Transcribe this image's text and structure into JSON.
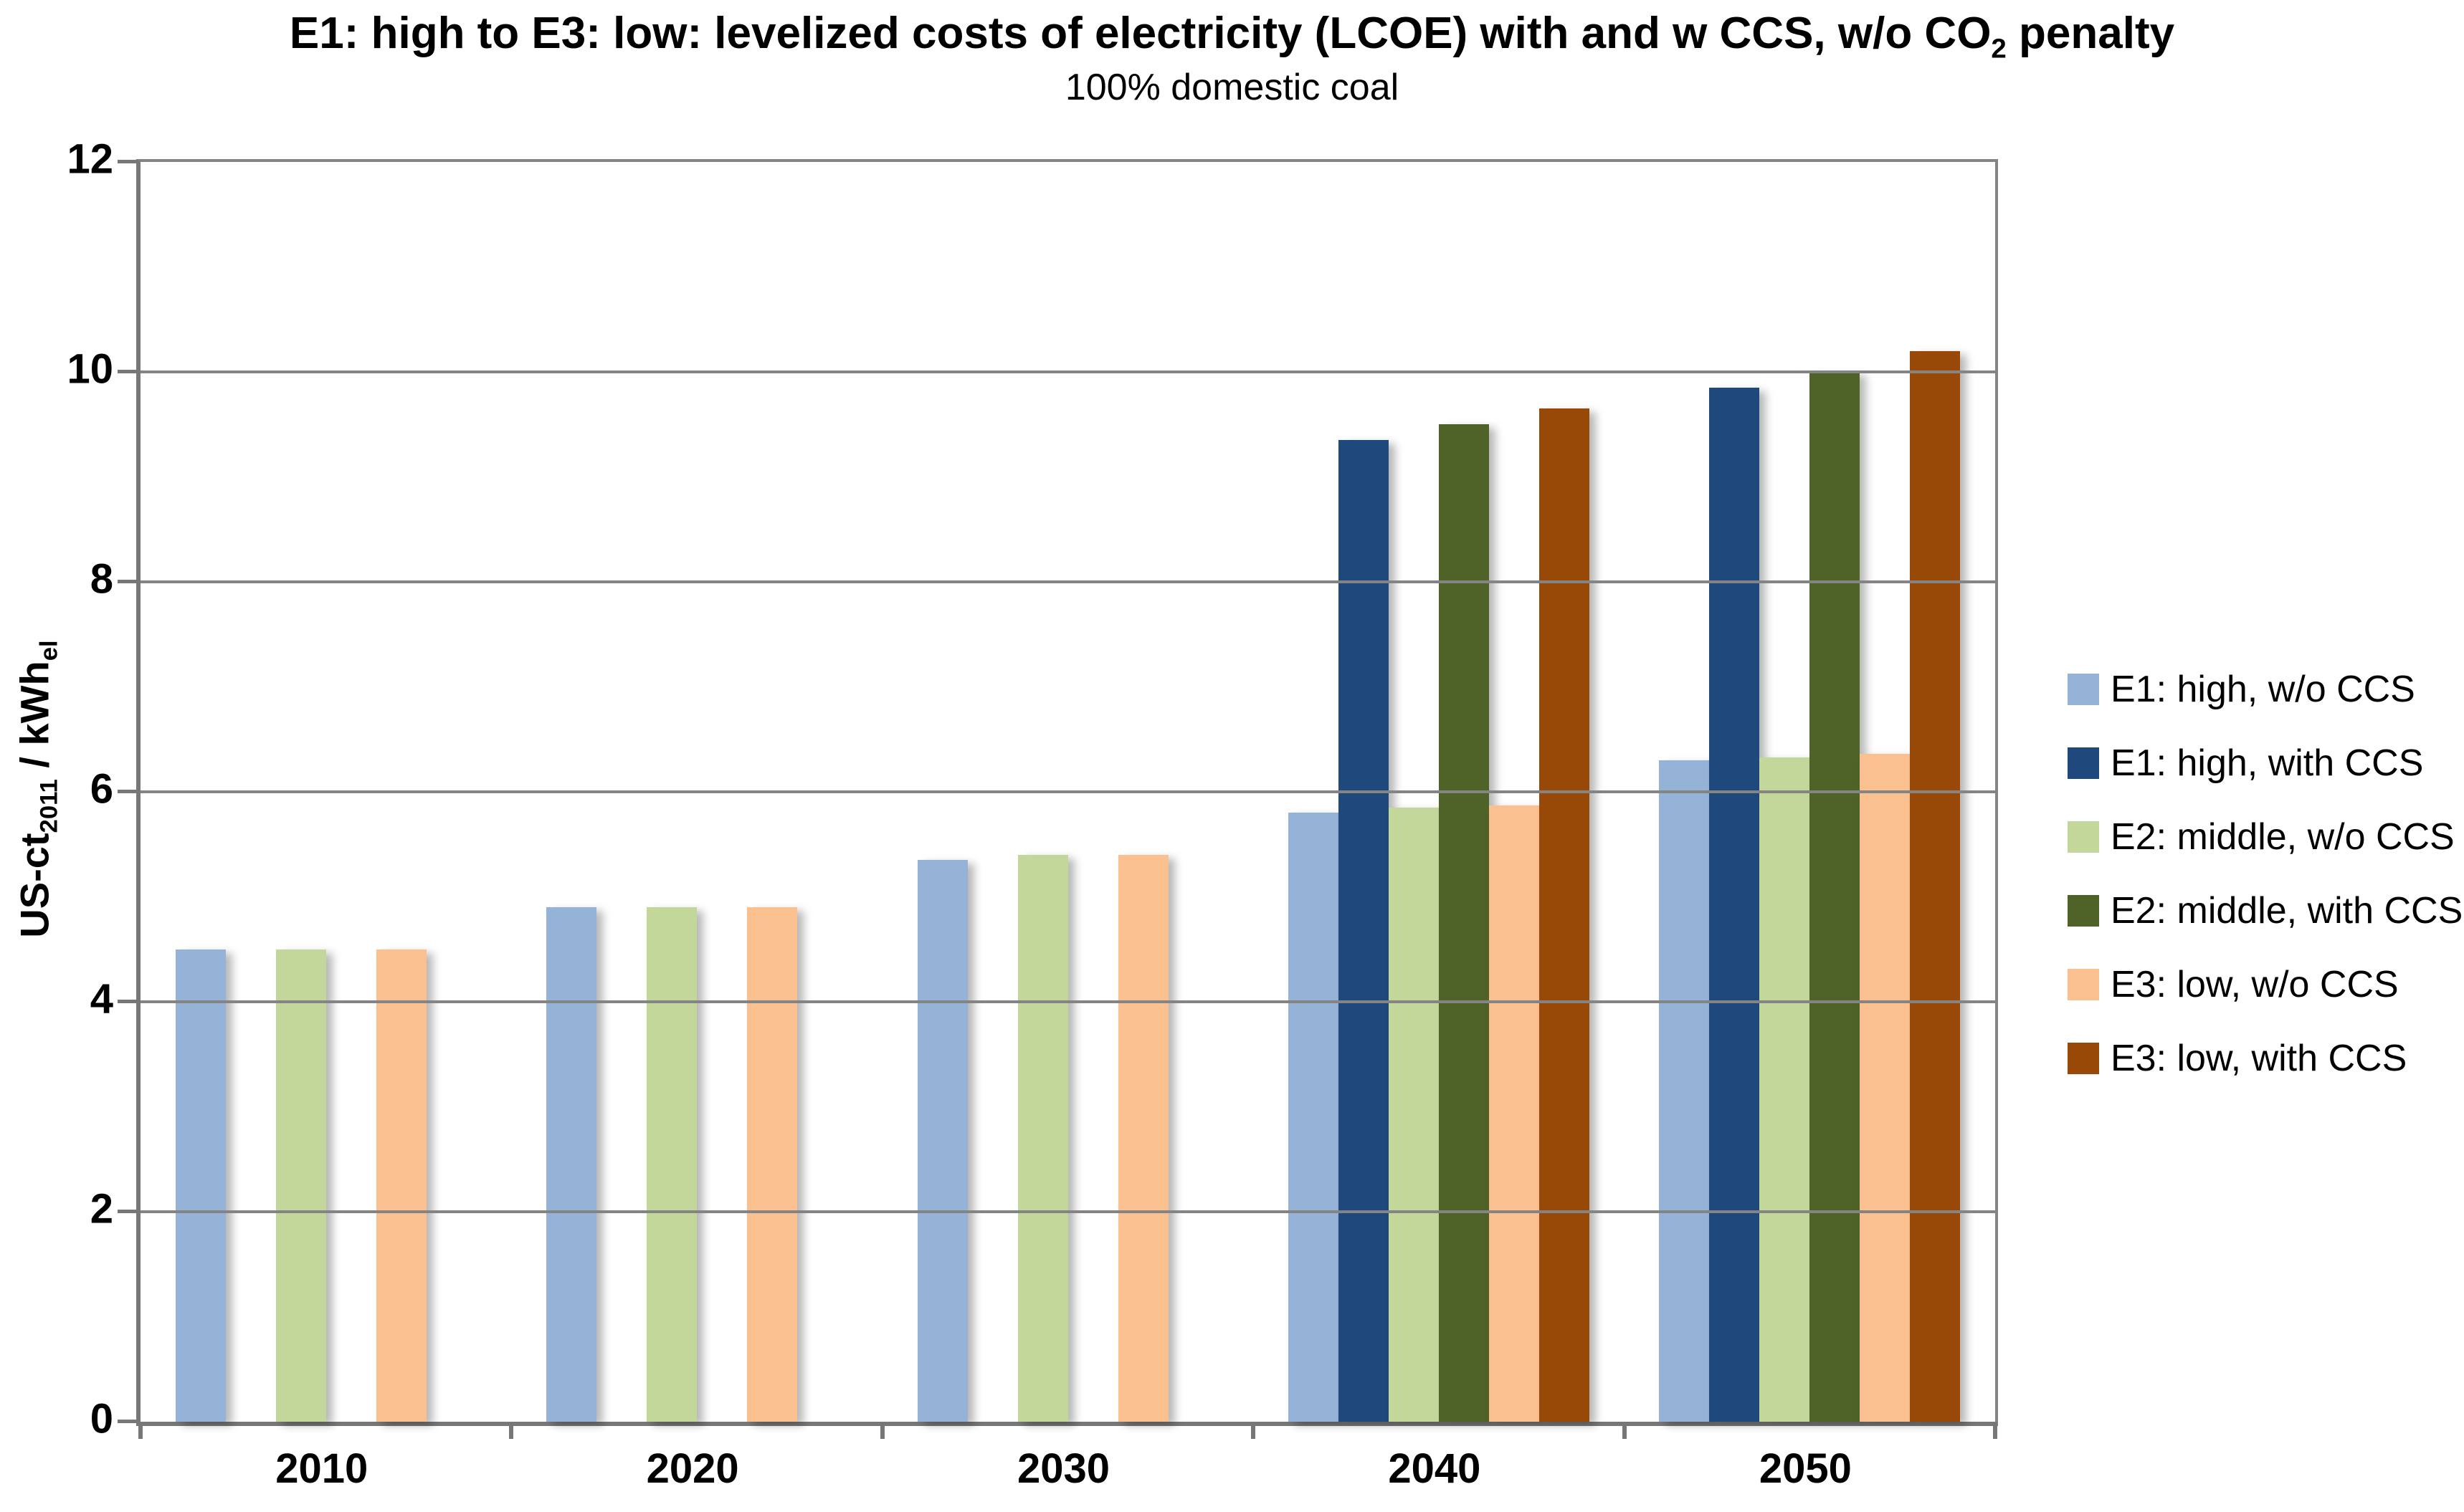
{
  "chart_data": {
    "type": "bar",
    "title": {
      "text": "E1: high to E3: low: levelized costs of electricity (LCOE) with and w CCS, w/o CO2 penalty",
      "pre": "E1: high to E3: low: levelized costs of electricity (LCOE) with and w CCS, w/o CO",
      "sub": "2",
      "post": " penalty"
    },
    "subtitle": "100% domestic coal",
    "y_axis": {
      "label": {
        "pre": "US-ct",
        "sub1": "2011",
        "mid": " / kWh",
        "sub2": "el"
      },
      "min": 0,
      "max": 12,
      "tick_step": 2,
      "tick_labels": [
        "0",
        "2",
        "4",
        "6",
        "8",
        "10",
        "12"
      ]
    },
    "categories": [
      "2010",
      "2020",
      "2030",
      "2040",
      "2050"
    ],
    "series": [
      {
        "name": "E1: high, w/o CCS",
        "color": "#95B3D7",
        "values": [
          4.5,
          4.9,
          5.35,
          5.8,
          6.3
        ]
      },
      {
        "name": "E1: high, with CCS",
        "color": "#1F497D",
        "values": [
          0,
          0,
          0,
          9.35,
          9.85
        ]
      },
      {
        "name": "E2: middle, w/o CCS",
        "color": "#C4D79B",
        "values": [
          4.5,
          4.9,
          5.4,
          5.85,
          6.33
        ]
      },
      {
        "name": "E2: middle, with CCS",
        "color": "#4F6228",
        "values": [
          0,
          0,
          0,
          9.5,
          10.0
        ]
      },
      {
        "name": "E3: low, w/o CCS",
        "color": "#FAC090",
        "values": [
          4.5,
          4.9,
          5.4,
          5.87,
          6.36
        ]
      },
      {
        "name": "E3: low, with CCS",
        "color": "#984807",
        "values": [
          0,
          0,
          0,
          9.65,
          10.2
        ]
      }
    ],
    "grid": "horizontal",
    "legend_position": "right",
    "axis_color": "#777777",
    "gridline_color": "#848484"
  }
}
